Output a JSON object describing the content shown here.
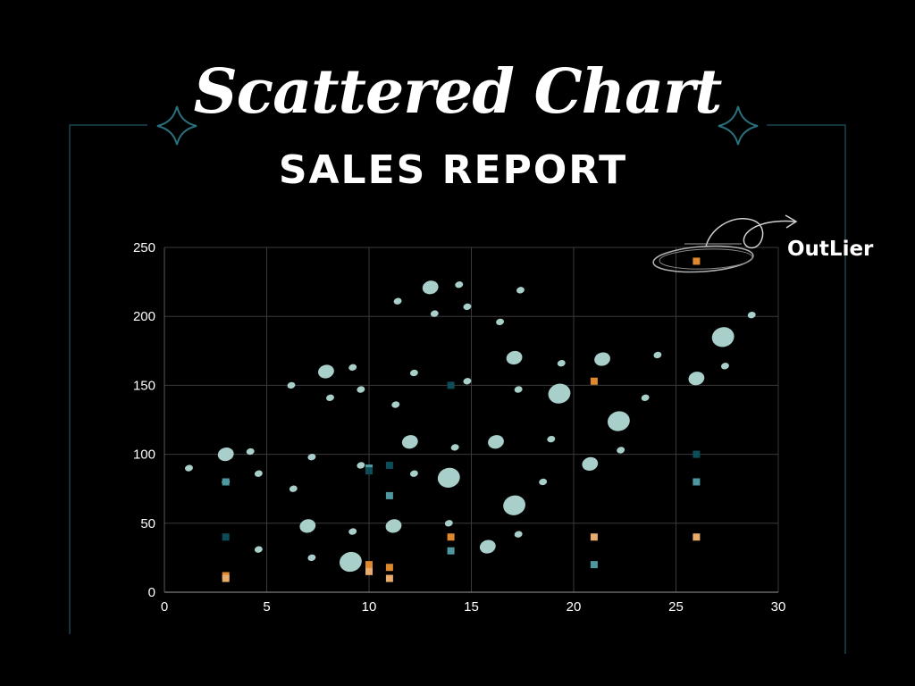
{
  "title": "Scattered Chart",
  "subtitle": "SALES REPORT",
  "annotation": {
    "label": "OutLier"
  },
  "colors": {
    "background": "#000000",
    "frame": "#1b4550",
    "grid": "#3a3a3a",
    "bubble": "#a9cfcb",
    "square_orange": "#e0882e",
    "square_light_orange": "#e8ac6c",
    "square_teal": "#4e99a1",
    "square_dark_teal": "#0d4d59"
  },
  "chart_data": {
    "type": "scatter",
    "xlim": [
      0,
      30
    ],
    "ylim": [
      0,
      250
    ],
    "xticks": [
      "0",
      "5",
      "10",
      "15",
      "20",
      "25",
      "30"
    ],
    "yticks": [
      "0",
      "50",
      "100",
      "150",
      "200",
      "250"
    ],
    "grid": true,
    "series": [
      {
        "marker": "bubble",
        "points": [
          {
            "x": 1.2,
            "y": 90,
            "s": 1
          },
          {
            "x": 3,
            "y": 100,
            "s": 2
          },
          {
            "x": 3,
            "y": 80,
            "s": 1
          },
          {
            "x": 4.2,
            "y": 102,
            "s": 1
          },
          {
            "x": 4.6,
            "y": 86,
            "s": 1
          },
          {
            "x": 4.6,
            "y": 31,
            "s": 1
          },
          {
            "x": 6.2,
            "y": 150,
            "s": 1
          },
          {
            "x": 6.3,
            "y": 75,
            "s": 1
          },
          {
            "x": 7,
            "y": 48,
            "s": 2
          },
          {
            "x": 7.2,
            "y": 98,
            "s": 1
          },
          {
            "x": 7.2,
            "y": 25,
            "s": 1
          },
          {
            "x": 7.9,
            "y": 160,
            "s": 2
          },
          {
            "x": 8.1,
            "y": 141,
            "s": 1
          },
          {
            "x": 9.1,
            "y": 22,
            "s": 3
          },
          {
            "x": 9.2,
            "y": 163,
            "s": 1
          },
          {
            "x": 9.2,
            "y": 44,
            "s": 1
          },
          {
            "x": 9.6,
            "y": 147,
            "s": 1
          },
          {
            "x": 9.6,
            "y": 92,
            "s": 1
          },
          {
            "x": 11.2,
            "y": 48,
            "s": 2
          },
          {
            "x": 11.3,
            "y": 136,
            "s": 1
          },
          {
            "x": 11.4,
            "y": 211,
            "s": 1
          },
          {
            "x": 12,
            "y": 109,
            "s": 2
          },
          {
            "x": 12.2,
            "y": 159,
            "s": 1
          },
          {
            "x": 12.2,
            "y": 86,
            "s": 1
          },
          {
            "x": 13,
            "y": 221,
            "s": 2
          },
          {
            "x": 13.2,
            "y": 202,
            "s": 1
          },
          {
            "x": 13.9,
            "y": 83,
            "s": 3
          },
          {
            "x": 13.9,
            "y": 50,
            "s": 1
          },
          {
            "x": 14.2,
            "y": 105,
            "s": 1
          },
          {
            "x": 14.4,
            "y": 223,
            "s": 1
          },
          {
            "x": 14.8,
            "y": 207,
            "s": 1
          },
          {
            "x": 14.8,
            "y": 153,
            "s": 1
          },
          {
            "x": 15.8,
            "y": 33,
            "s": 2
          },
          {
            "x": 16.2,
            "y": 109,
            "s": 2
          },
          {
            "x": 16.4,
            "y": 196,
            "s": 1
          },
          {
            "x": 17.1,
            "y": 170,
            "s": 2
          },
          {
            "x": 17.1,
            "y": 63,
            "s": 3
          },
          {
            "x": 17.3,
            "y": 147,
            "s": 1
          },
          {
            "x": 17.3,
            "y": 42,
            "s": 1
          },
          {
            "x": 17.4,
            "y": 219,
            "s": 1
          },
          {
            "x": 18.5,
            "y": 80,
            "s": 1
          },
          {
            "x": 18.9,
            "y": 111,
            "s": 1
          },
          {
            "x": 19.3,
            "y": 144,
            "s": 3
          },
          {
            "x": 19.4,
            "y": 166,
            "s": 1
          },
          {
            "x": 20.8,
            "y": 93,
            "s": 2
          },
          {
            "x": 21.4,
            "y": 169,
            "s": 2
          },
          {
            "x": 22.2,
            "y": 124,
            "s": 3
          },
          {
            "x": 22.3,
            "y": 103,
            "s": 1
          },
          {
            "x": 23.5,
            "y": 141,
            "s": 1
          },
          {
            "x": 24.1,
            "y": 172,
            "s": 1
          },
          {
            "x": 26,
            "y": 155,
            "s": 2
          },
          {
            "x": 27.3,
            "y": 185,
            "s": 3
          },
          {
            "x": 27.4,
            "y": 164,
            "s": 1
          },
          {
            "x": 28.7,
            "y": 201,
            "s": 1
          }
        ]
      },
      {
        "marker": "square-orange",
        "points": [
          {
            "x": 26,
            "y": 240
          },
          {
            "x": 21,
            "y": 153
          },
          {
            "x": 14,
            "y": 40
          },
          {
            "x": 11,
            "y": 18
          },
          {
            "x": 10,
            "y": 20
          },
          {
            "x": 3,
            "y": 12
          }
        ]
      },
      {
        "marker": "square-light-orange",
        "points": [
          {
            "x": 3,
            "y": 10
          },
          {
            "x": 10,
            "y": 15
          },
          {
            "x": 11,
            "y": 10
          },
          {
            "x": 21,
            "y": 40
          },
          {
            "x": 26,
            "y": 40
          }
        ]
      },
      {
        "marker": "square-teal",
        "points": [
          {
            "x": 3,
            "y": 80
          },
          {
            "x": 10,
            "y": 90
          },
          {
            "x": 11,
            "y": 70
          },
          {
            "x": 14,
            "y": 30
          },
          {
            "x": 21,
            "y": 20
          },
          {
            "x": 26,
            "y": 80
          }
        ]
      },
      {
        "marker": "square-dark-teal",
        "points": [
          {
            "x": 3,
            "y": 40
          },
          {
            "x": 10,
            "y": 88
          },
          {
            "x": 11,
            "y": 92
          },
          {
            "x": 14,
            "y": 150
          },
          {
            "x": 26,
            "y": 100
          }
        ]
      }
    ]
  }
}
